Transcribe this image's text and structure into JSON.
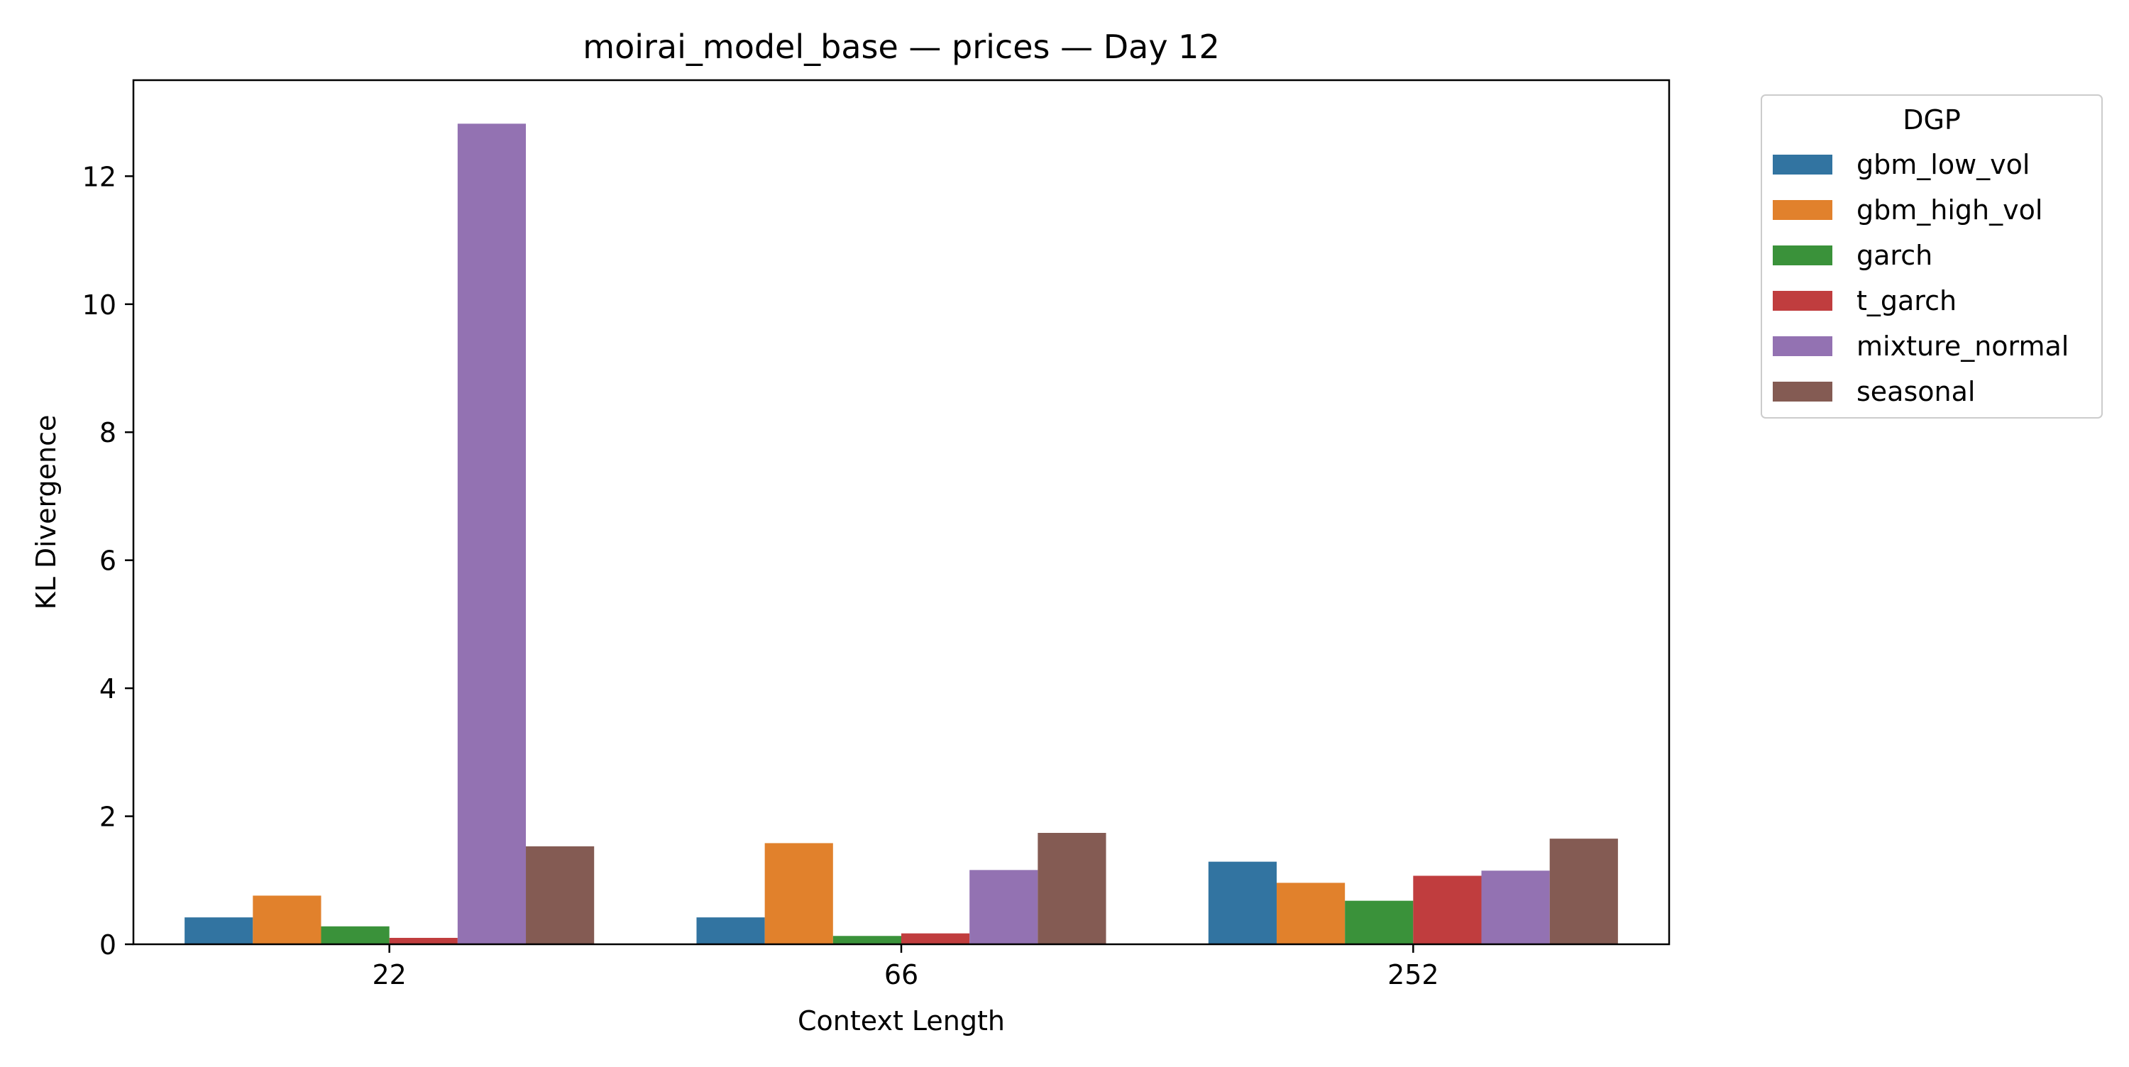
{
  "chart_data": {
    "type": "bar",
    "title": "moirai_model_base — prices — Day 12",
    "xlabel": "Context Length",
    "ylabel": "KL Divergence",
    "categories": [
      "22",
      "66",
      "252"
    ],
    "ylim": [
      0,
      13.5
    ],
    "yticks": [
      0,
      2,
      4,
      6,
      8,
      10,
      12
    ],
    "grid": false,
    "legend": {
      "title": "DGP",
      "placement": "outside-top-right"
    },
    "series": [
      {
        "name": "gbm_low_vol",
        "color": "#3274a1",
        "values": [
          0.42,
          0.42,
          1.29
        ]
      },
      {
        "name": "gbm_high_vol",
        "color": "#e1812c",
        "values": [
          0.76,
          1.58,
          0.96
        ]
      },
      {
        "name": "garch",
        "color": "#3a923a",
        "values": [
          0.28,
          0.13,
          0.68
        ]
      },
      {
        "name": "t_garch",
        "color": "#c03d3e",
        "values": [
          0.1,
          0.17,
          1.07
        ]
      },
      {
        "name": "mixture_normal",
        "color": "#9372b2",
        "values": [
          12.82,
          1.16,
          1.15
        ]
      },
      {
        "name": "seasonal",
        "color": "#845b53",
        "values": [
          1.53,
          1.74,
          1.65
        ]
      }
    ]
  }
}
